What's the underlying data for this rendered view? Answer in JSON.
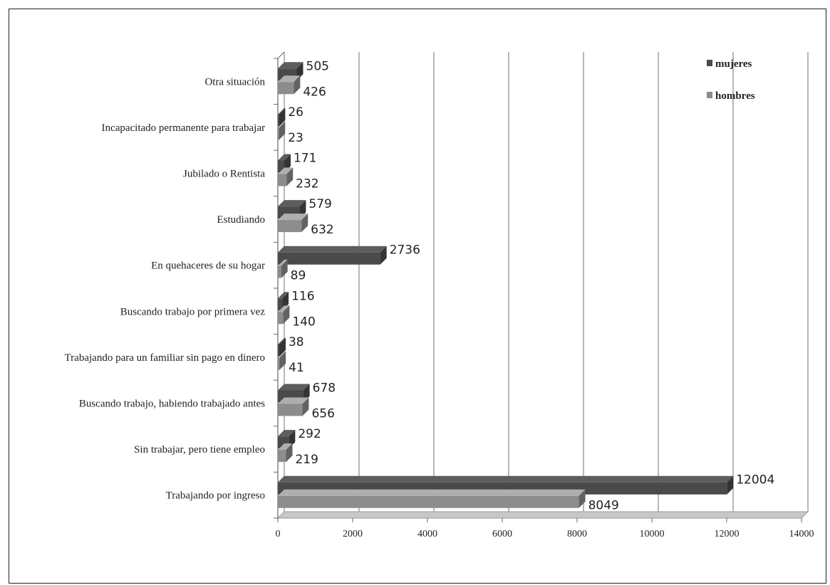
{
  "chart_data": {
    "type": "bar",
    "orientation": "horizontal",
    "style": "3d",
    "categories": [
      "Otra situación",
      "Incapacitado permanente para trabajar",
      "Jubilado o Rentista",
      "Estudiando",
      "En quehaceres de su hogar",
      "Buscando trabajo por primera vez",
      "Trabajando para un familiar sin pago en dinero",
      "Buscando trabajo, habiendo trabajado antes",
      "Sin trabajar, pero tiene empleo",
      "Trabajando por ingreso"
    ],
    "series": [
      {
        "name": "mujeres",
        "color": "#4a4a4a",
        "values": [
          505,
          26,
          171,
          579,
          2736,
          116,
          38,
          678,
          292,
          12004
        ]
      },
      {
        "name": "hombres",
        "color": "#8c8c8c",
        "values": [
          426,
          23,
          232,
          632,
          89,
          140,
          41,
          656,
          219,
          8049
        ]
      }
    ],
    "xlim": [
      0,
      14000
    ],
    "xticks": [
      "0",
      "2000",
      "4000",
      "6000",
      "8000",
      "10000",
      "12000",
      "14000"
    ],
    "grid": true,
    "legend_position": "top-right",
    "title": "",
    "xlabel": "",
    "ylabel": ""
  }
}
